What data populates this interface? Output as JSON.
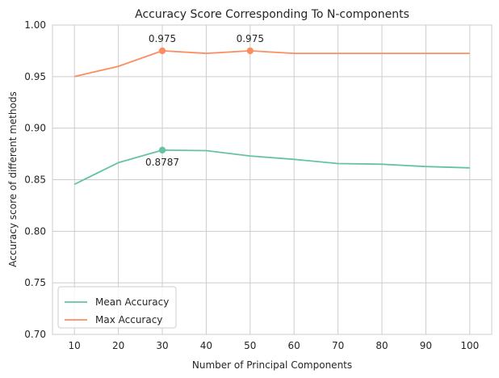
{
  "chart_data": {
    "type": "line",
    "title": "Accuracy Score Corresponding To N-components",
    "xlabel": "Number of Principal Components",
    "ylabel": "Accuracy score of different methods",
    "x": [
      10,
      20,
      30,
      40,
      50,
      60,
      70,
      80,
      90,
      100
    ],
    "xticks": [
      "10",
      "20",
      "30",
      "40",
      "50",
      "60",
      "70",
      "80",
      "90",
      "100"
    ],
    "yticks": [
      "0.70",
      "0.75",
      "0.80",
      "0.85",
      "0.90",
      "0.95",
      "1.00"
    ],
    "ylim": [
      0.7,
      1.0
    ],
    "grid": true,
    "legend_position": "lower-left",
    "series": [
      {
        "name": "Mean Accuracy",
        "color": "#66c2a5",
        "values": [
          0.8455,
          0.8665,
          0.8787,
          0.8782,
          0.873,
          0.8697,
          0.8657,
          0.865,
          0.8628,
          0.8615
        ]
      },
      {
        "name": "Max Accuracy",
        "color": "#fc8d62",
        "values": [
          0.95,
          0.96,
          0.975,
          0.9725,
          0.975,
          0.9725,
          0.9725,
          0.9725,
          0.9725,
          0.9725
        ]
      }
    ],
    "annotations": [
      {
        "x": 30,
        "y": 0.975,
        "text": "0.975",
        "series": 1,
        "placement": "above"
      },
      {
        "x": 50,
        "y": 0.975,
        "text": "0.975",
        "series": 1,
        "placement": "above"
      },
      {
        "x": 30,
        "y": 0.8787,
        "text": "0.8787",
        "series": 0,
        "placement": "below"
      }
    ]
  }
}
